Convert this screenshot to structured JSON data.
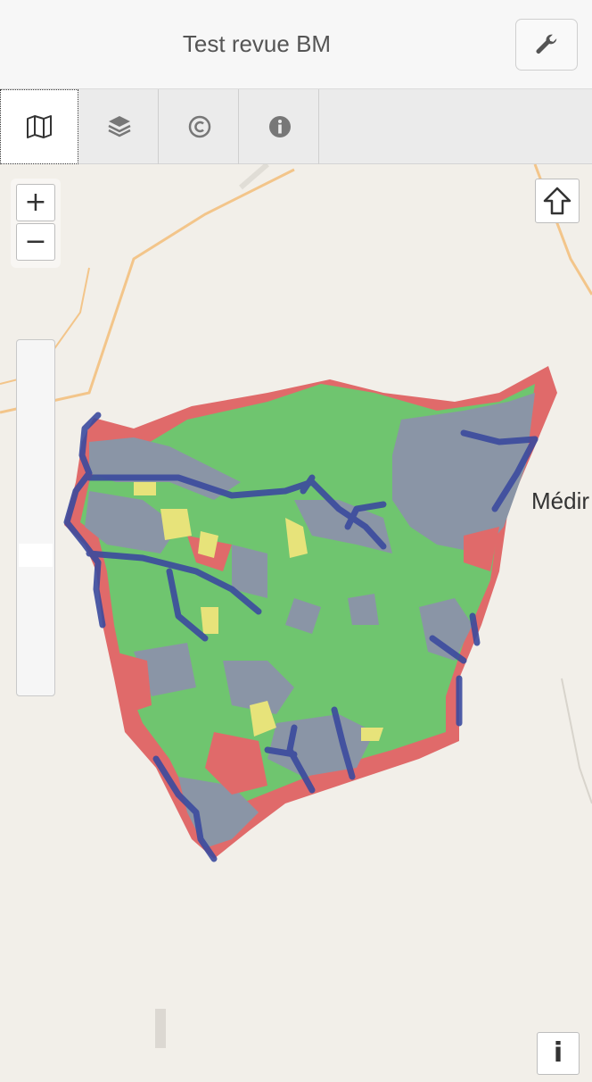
{
  "header": {
    "title": "Test revue BM",
    "tool_icon": "wrench-icon"
  },
  "tabs": [
    {
      "icon": "map-icon",
      "active": true
    },
    {
      "icon": "layers-icon",
      "active": false
    },
    {
      "icon": "copyright-icon",
      "active": false
    },
    {
      "icon": "info-circle-icon",
      "active": false
    }
  ],
  "map": {
    "place_label": "Médir",
    "zoom_in_label": "+",
    "zoom_out_label": "−",
    "info_label": "i",
    "home_icon": "arrow-up-icon",
    "colors": {
      "land": "#f2efe9",
      "road": "#f3c58a",
      "green": "#6fc56f",
      "grey_blue": "#8a95a6",
      "red": "#e06a6a",
      "yellow": "#e7e37a",
      "river": "#3b4a9e"
    }
  }
}
